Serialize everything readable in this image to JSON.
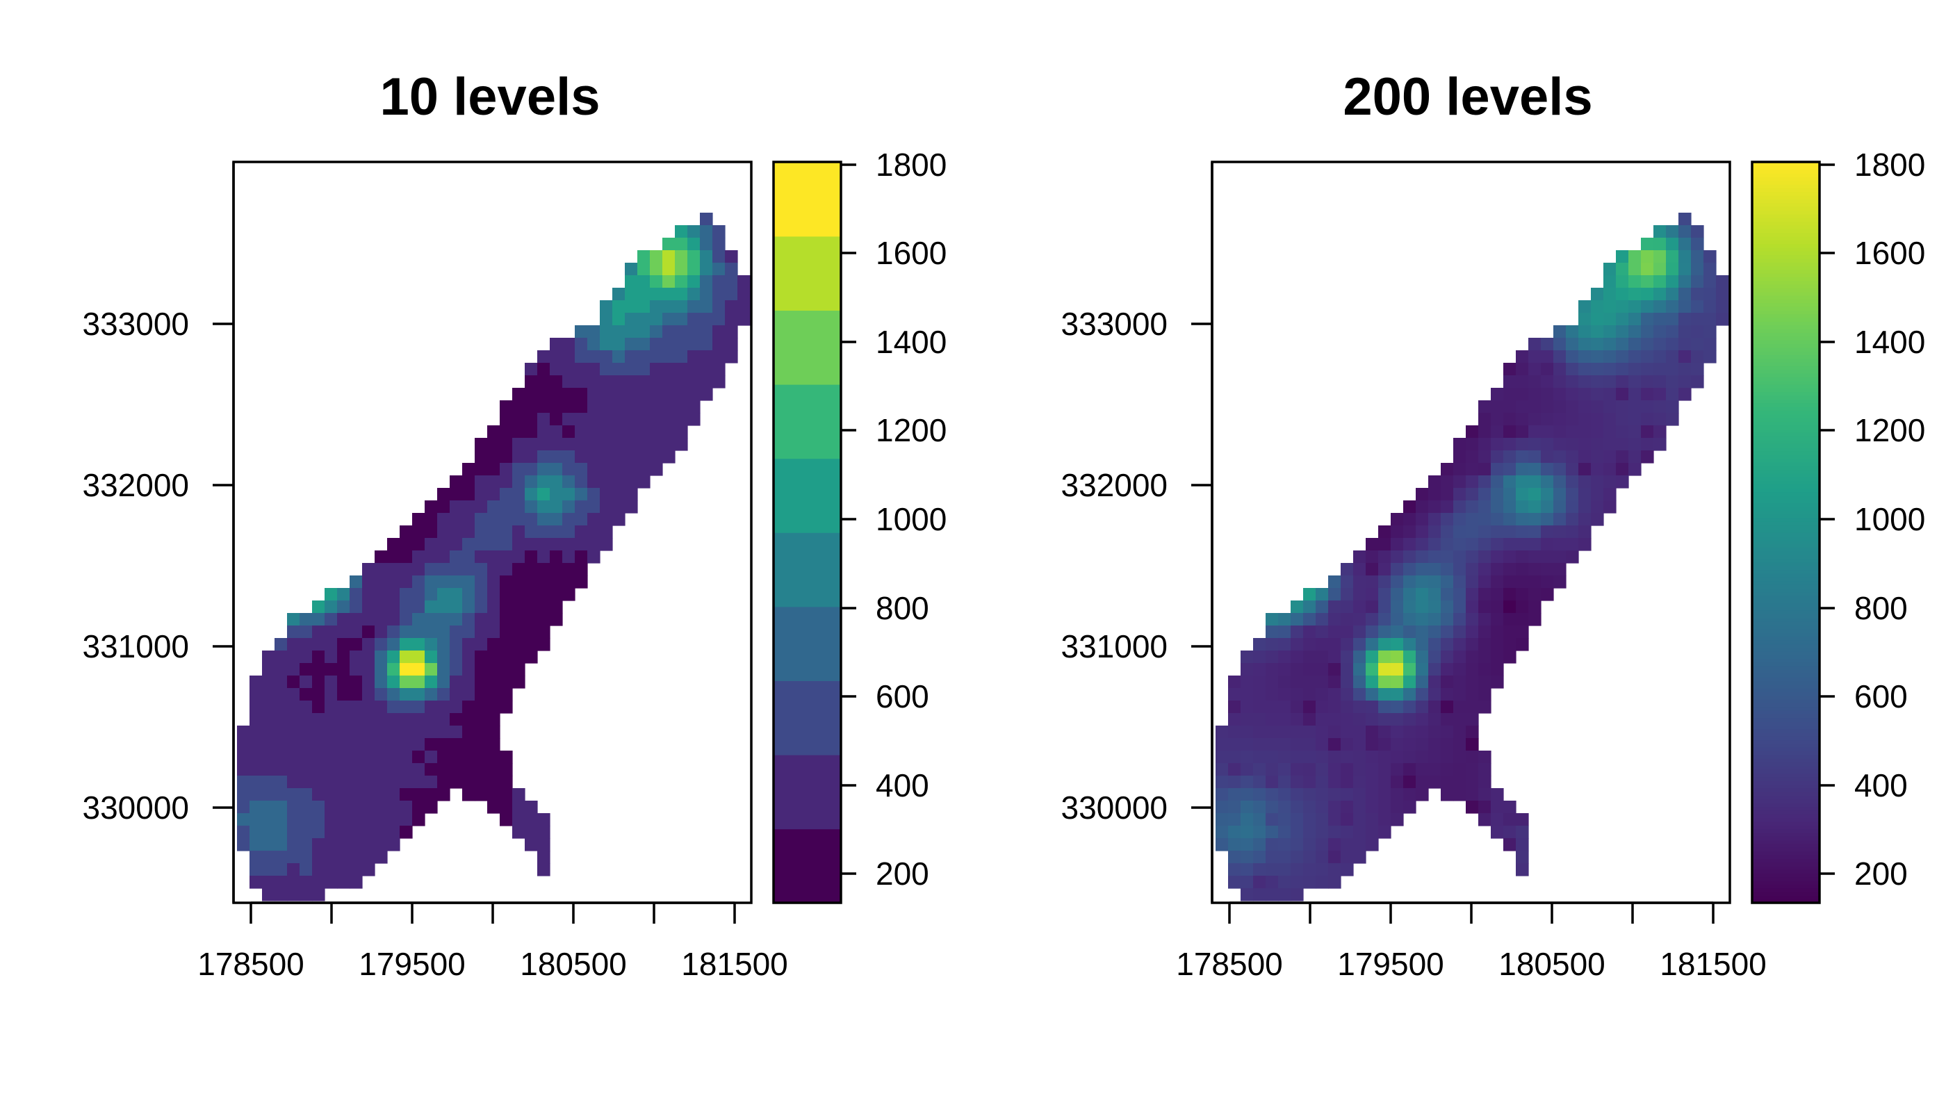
{
  "panels": [
    {
      "title": "10 levels",
      "classes": 10,
      "x_ticks": [
        "178500",
        "179500",
        "180500",
        "181500"
      ],
      "y_ticks": [
        "333000",
        "332000",
        "331000",
        "330000"
      ],
      "legend_ticks": [
        "1800",
        "1600",
        "1400",
        "1200",
        "1000",
        "800",
        "600",
        "400",
        "200"
      ]
    },
    {
      "title": "200 levels",
      "classes": 200,
      "x_ticks": [
        "178500",
        "179500",
        "180500",
        "181500"
      ],
      "y_ticks": [
        "333000",
        "332000",
        "331000",
        "330000"
      ],
      "legend_ticks": [
        "1800",
        "1600",
        "1400",
        "1200",
        "1000",
        "800",
        "600",
        "400",
        "200"
      ]
    }
  ],
  "colormap": {
    "name": "viridis",
    "stops": [
      "#440154",
      "#482878",
      "#3e4a89",
      "#31688e",
      "#26828e",
      "#1f9e89",
      "#35b779",
      "#6ece58",
      "#b5de2b",
      "#fde725"
    ]
  },
  "value_range": [
    130,
    1800
  ],
  "x_range": [
    178400,
    181600
  ],
  "y_range": [
    329400,
    334000
  ]
}
